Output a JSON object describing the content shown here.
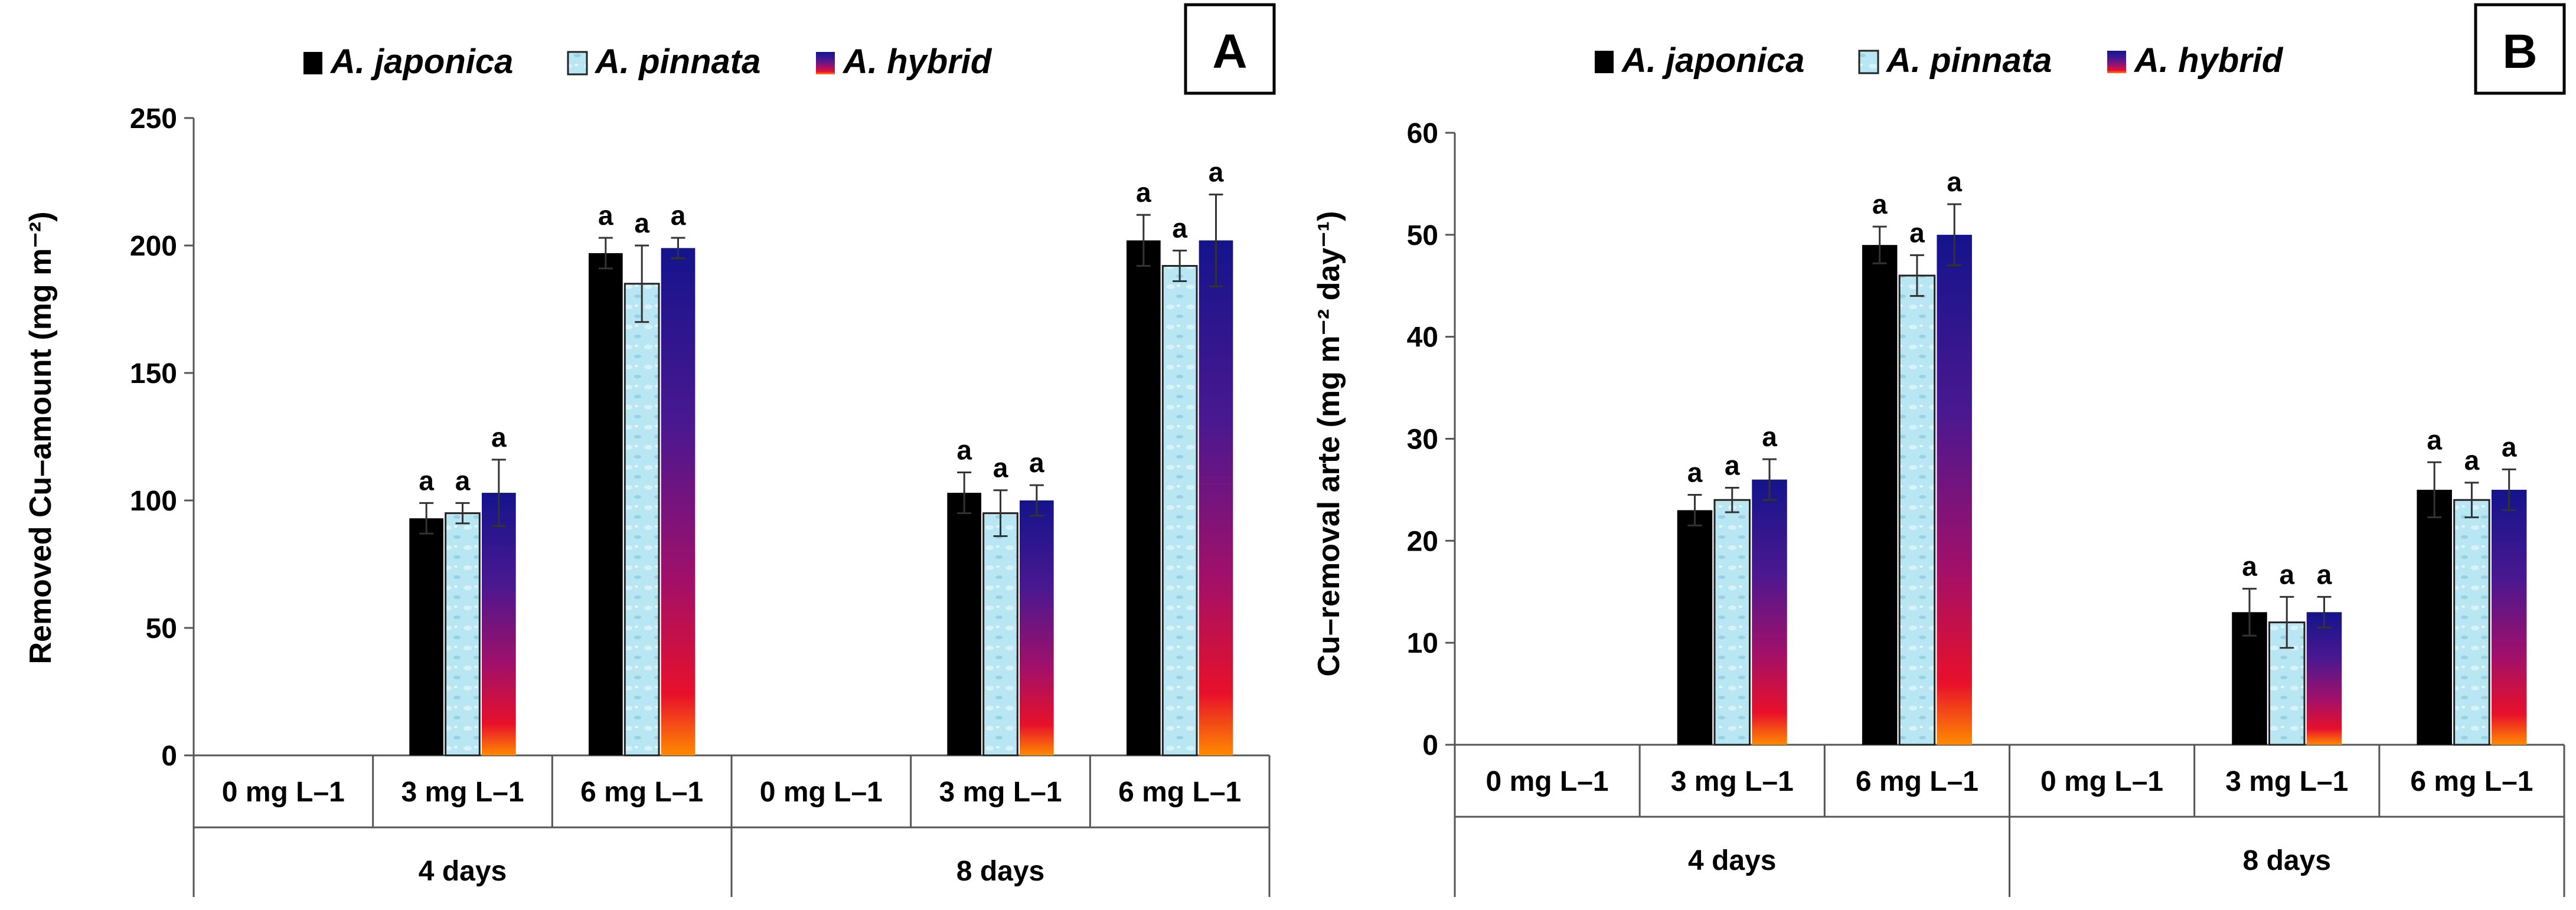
{
  "colors": {
    "japonica": "#000000",
    "pinnata_fill": "#b8e6f2",
    "pinnata_edge": "#222222"
  },
  "chart_data": [
    {
      "type": "bar",
      "panel": "A",
      "ylabel": "Removed Cu–amount (mg m⁻²)",
      "ylim": [
        0,
        250
      ],
      "yticks": [
        0,
        50,
        100,
        150,
        200,
        250
      ],
      "categories": [
        "0 mg L–1",
        "3 mg L–1",
        "6 mg L–1",
        "0 mg L–1",
        "3 mg L–1",
        "6 mg L–1"
      ],
      "groups": [
        {
          "label": "4 days",
          "span": [
            0,
            3
          ]
        },
        {
          "label": "8 days",
          "span": [
            3,
            6
          ]
        }
      ],
      "series": [
        {
          "name": "A. japonica",
          "values": [
            0,
            93,
            197,
            0,
            103,
            202
          ],
          "errors": [
            0,
            6,
            6,
            0,
            8,
            10
          ],
          "labels": [
            "",
            "a",
            "a",
            "",
            "a",
            "a"
          ]
        },
        {
          "name": "A. pinnata",
          "values": [
            0,
            95,
            185,
            0,
            95,
            192
          ],
          "errors": [
            0,
            4,
            15,
            0,
            9,
            6
          ],
          "labels": [
            "",
            "a",
            "a",
            "",
            "a",
            "a"
          ]
        },
        {
          "name": "A. hybrid",
          "values": [
            0,
            103,
            199,
            0,
            100,
            202
          ],
          "errors": [
            0,
            13,
            4,
            0,
            6,
            18
          ],
          "labels": [
            "",
            "a",
            "a",
            "",
            "a",
            "a"
          ]
        }
      ]
    },
    {
      "type": "bar",
      "panel": "B",
      "ylabel": "Cu–removal arte (mg m⁻² day⁻¹)",
      "ylim": [
        0,
        60
      ],
      "yticks": [
        0,
        10,
        20,
        30,
        40,
        50,
        60
      ],
      "categories": [
        "0 mg L–1",
        "3 mg L–1",
        "6 mg L–1",
        "0 mg L–1",
        "3 mg L–1",
        "6 mg L–1"
      ],
      "groups": [
        {
          "label": "4 days",
          "span": [
            0,
            3
          ]
        },
        {
          "label": "8 days",
          "span": [
            3,
            6
          ]
        }
      ],
      "series": [
        {
          "name": "A. japonica",
          "values": [
            0,
            23,
            49,
            0,
            13,
            25
          ],
          "errors": [
            0,
            1.5,
            1.8,
            0,
            2.3,
            2.7
          ],
          "labels": [
            "",
            "a",
            "a",
            "",
            "a",
            "a"
          ]
        },
        {
          "name": "A. pinnata",
          "values": [
            0,
            24,
            46,
            0,
            12,
            24
          ],
          "errors": [
            0,
            1.2,
            2.0,
            0,
            2.5,
            1.7
          ],
          "labels": [
            "",
            "a",
            "a",
            "",
            "a",
            "a"
          ]
        },
        {
          "name": "A. hybrid",
          "values": [
            0,
            26,
            50,
            0,
            13,
            25
          ],
          "errors": [
            0,
            2.0,
            3.0,
            0,
            1.5,
            2.0
          ],
          "labels": [
            "",
            "a",
            "a",
            "",
            "a",
            "a"
          ]
        }
      ]
    }
  ]
}
